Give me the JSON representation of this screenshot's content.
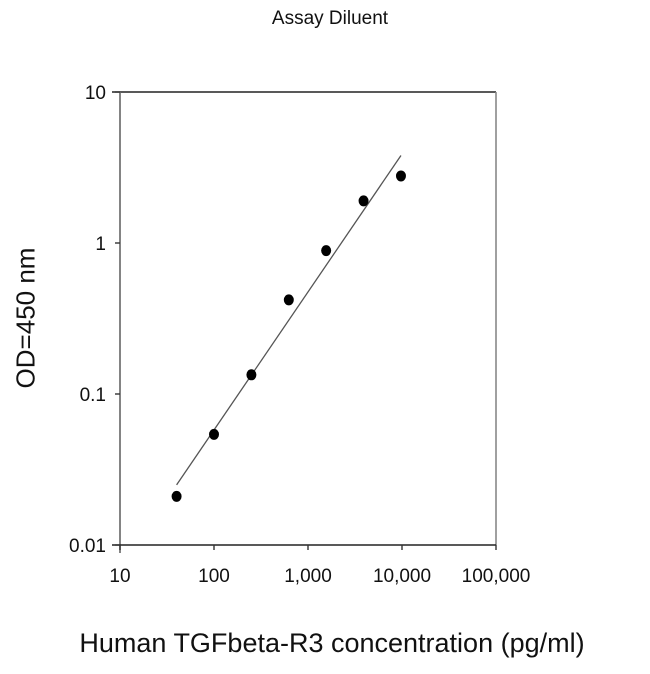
{
  "chart_data": {
    "type": "scatter",
    "title": "Assay Diluent",
    "xlabel": "Human TGFbeta-R3 concentration (pg/ml)",
    "ylabel": "OD=450 nm",
    "xscale": "log",
    "yscale": "log",
    "xlim": [
      10,
      100000
    ],
    "ylim": [
      0.01,
      10
    ],
    "x_ticks": [
      10,
      100,
      1000,
      10000,
      100000
    ],
    "x_tick_labels": [
      "10",
      "100",
      "1,000",
      "10,000",
      "100,000"
    ],
    "y_ticks": [
      0.01,
      0.1,
      1,
      10
    ],
    "y_tick_labels": [
      "0.01",
      "0.1",
      "1",
      "10"
    ],
    "grid": false,
    "legend": null,
    "series": [
      {
        "name": "Assay Diluent",
        "marker": "filled-circle",
        "color": "#000000",
        "x": [
          40,
          100,
          250,
          625,
          1560,
          3900,
          9750
        ],
        "y": [
          0.021,
          0.054,
          0.134,
          0.42,
          0.89,
          1.9,
          2.78
        ]
      }
    ],
    "fit_line": {
      "type": "linear-log-log",
      "color": "#555555",
      "x": [
        40,
        9750
      ],
      "y": [
        0.025,
        3.8
      ]
    }
  }
}
